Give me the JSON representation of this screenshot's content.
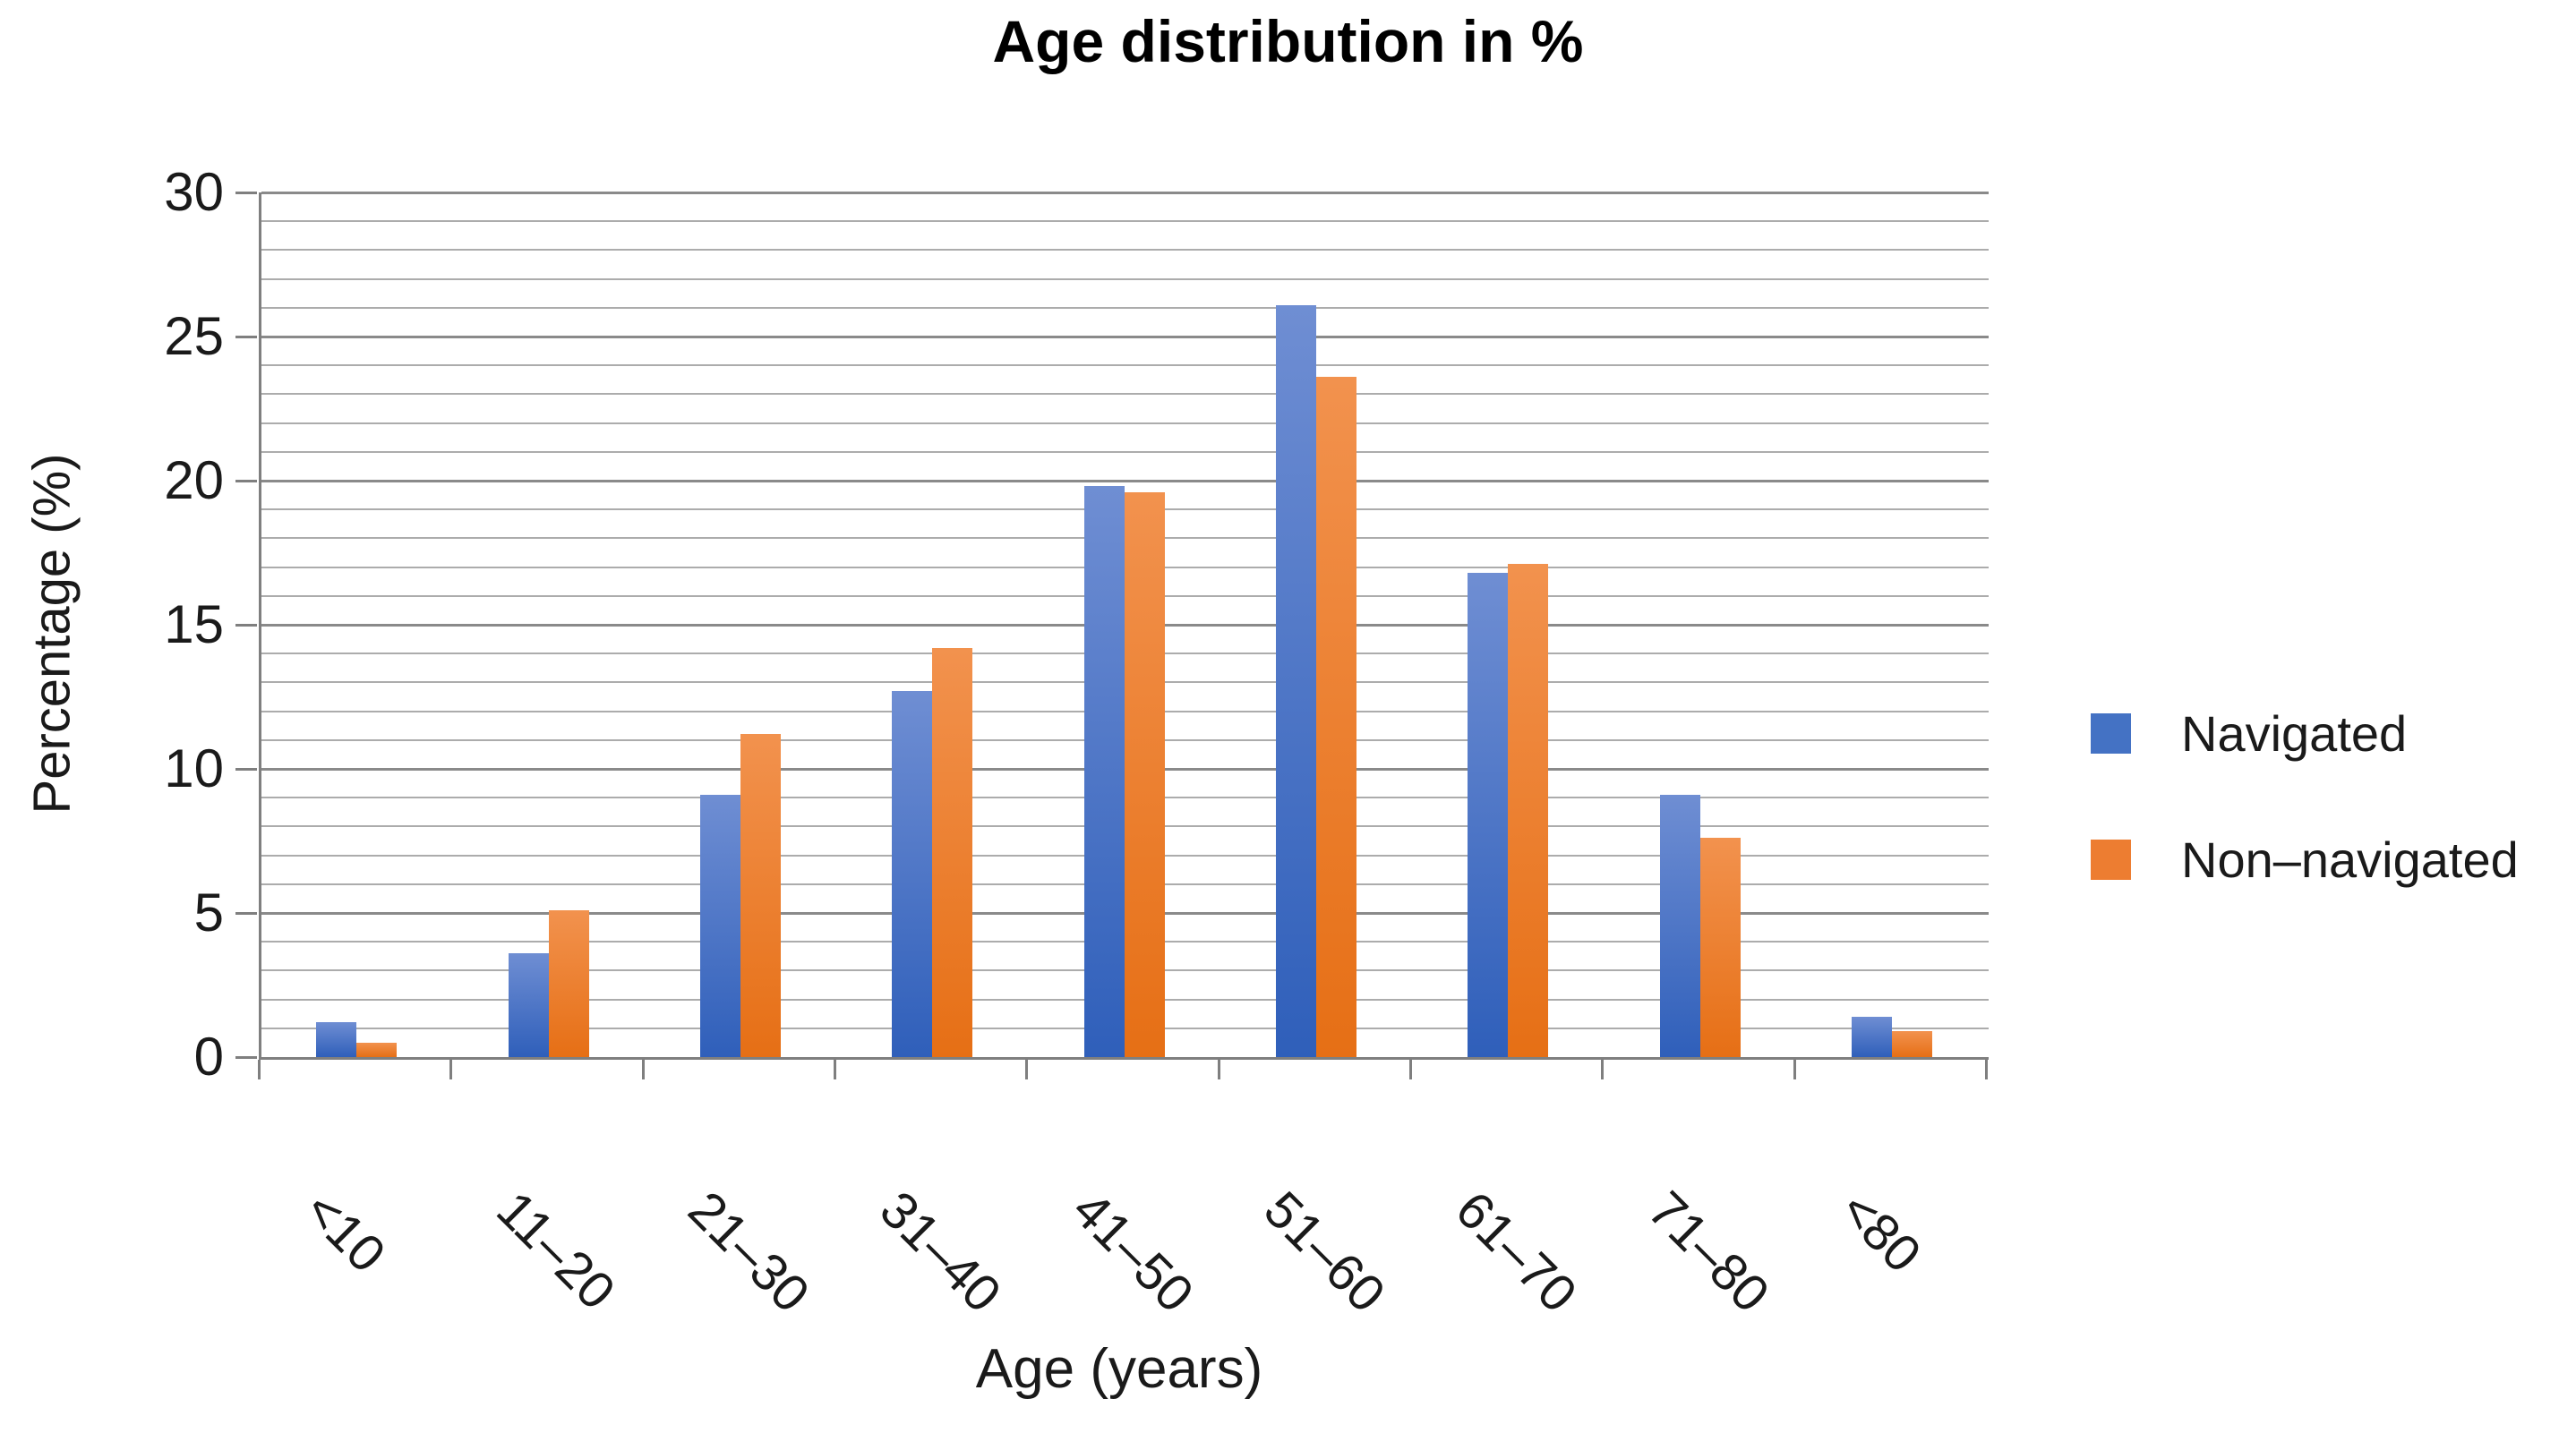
{
  "title": "Age distribution in %",
  "chart_data": {
    "type": "bar",
    "title": "Age distribution in %",
    "xlabel": "Age (years)",
    "ylabel": "Percentage (%)",
    "categories": [
      "<10",
      "11–20",
      "21–30",
      "31–40",
      "41–50",
      "51–60",
      "61–70",
      "71–80",
      "<80"
    ],
    "series": [
      {
        "name": "Navigated",
        "color": "#4472C4",
        "gradient_top": "#6F8ED3",
        "gradient_bottom": "#2F5FBA",
        "values": [
          1.2,
          3.6,
          9.1,
          12.7,
          19.8,
          26.1,
          16.8,
          9.1,
          1.4
        ]
      },
      {
        "name": "Non–navigated",
        "color": "#ED7D31",
        "gradient_top": "#F2924E",
        "gradient_bottom": "#E66F15",
        "values": [
          0.5,
          5.1,
          11.2,
          14.2,
          19.6,
          23.6,
          17.1,
          7.6,
          0.9
        ]
      }
    ],
    "ylim": [
      0,
      30
    ],
    "yticks": [
      0,
      5,
      10,
      15,
      20,
      25,
      30
    ],
    "minor_unit": 1,
    "grid": "on",
    "legend_position": "right"
  },
  "colors": {
    "minor_gridline": "#ACACAC",
    "major_gridline": "#8A8A8A",
    "axis_line": "#7F7F7F",
    "text": "#1A1A1A",
    "title_text": "#000000",
    "background": "#FFFFFF"
  }
}
